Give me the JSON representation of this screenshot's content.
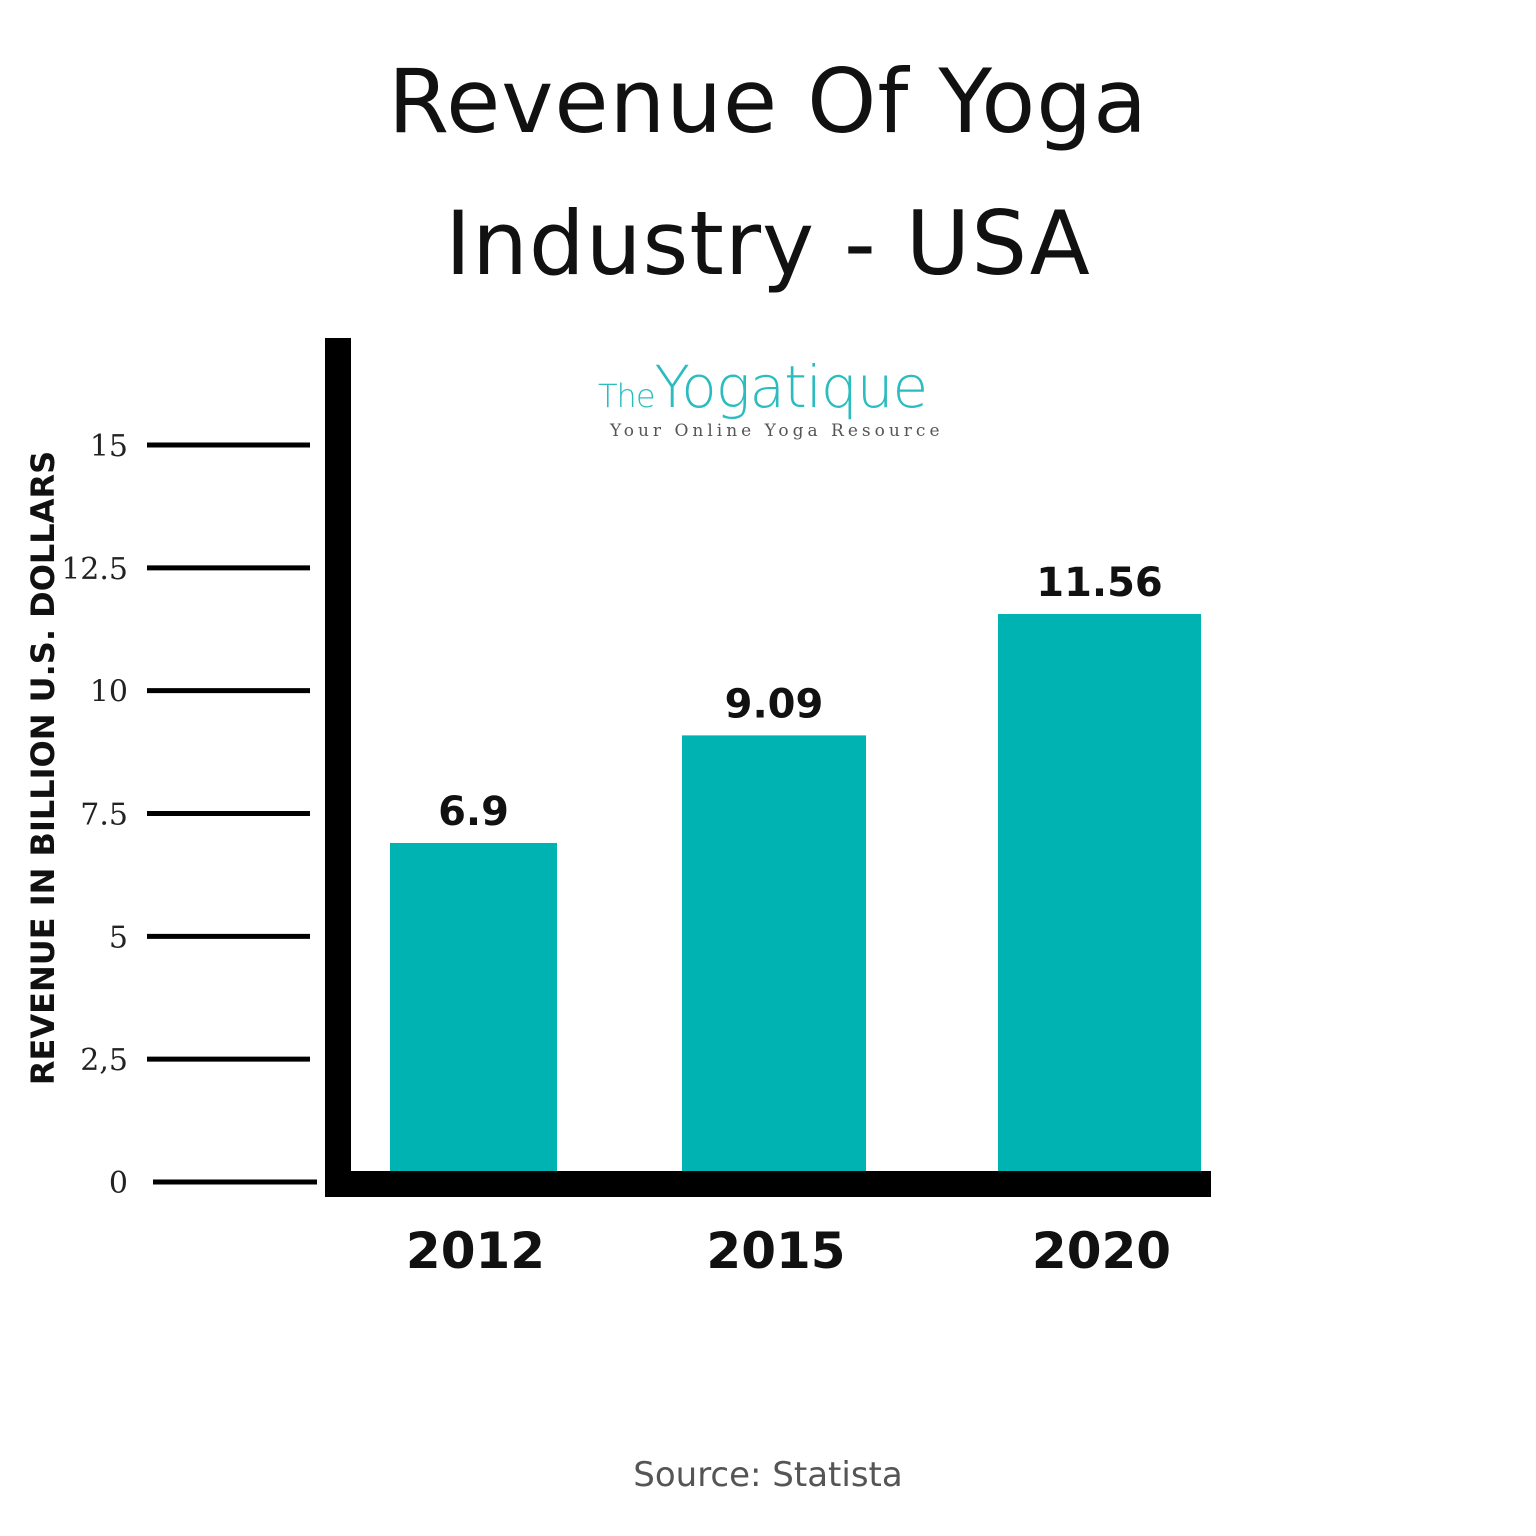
{
  "chart_data": {
    "type": "bar",
    "title_lines": [
      "Revenue Of Yoga",
      "Industry - USA"
    ],
    "xlabel": "",
    "ylabel": "REVENUE IN BILLION U.S. DOLLARS",
    "categories": [
      "2012",
      "2015",
      "2020"
    ],
    "values": [
      6.9,
      9.09,
      11.56
    ],
    "data_labels": [
      "6.9",
      "9.09",
      "11.56"
    ],
    "yticks": [
      0,
      2.5,
      5,
      7.5,
      10,
      12.5,
      15
    ],
    "ytick_labels": [
      "0",
      "2,5",
      "5",
      "7.5",
      "10",
      "12.5",
      "15"
    ],
    "ylim": [
      0,
      15
    ],
    "grid": false,
    "legend": "none",
    "bar_color": "#00B3B3"
  },
  "logo": {
    "text_the": "The",
    "text_main": "Yogatique",
    "tagline": "Your Online Yoga Resource"
  },
  "source": "Source: Statista"
}
